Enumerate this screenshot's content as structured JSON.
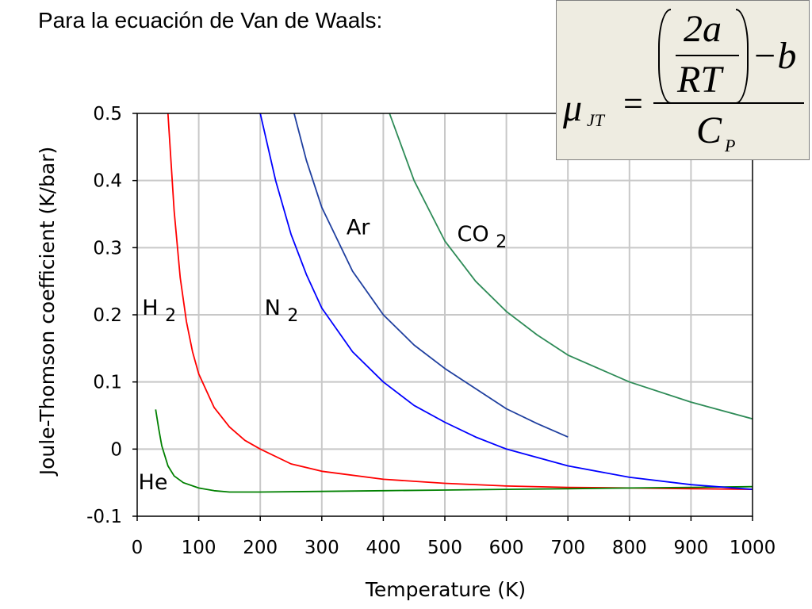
{
  "slide": {
    "title": "Para la ecuación de Van de Waals:"
  },
  "formula": {
    "mu": "μ",
    "mu_subscript": "JT",
    "equals": "=",
    "two_a": "2a",
    "rt": "RT",
    "minus_b": "−b",
    "cp": "C",
    "cp_subscript": "P"
  },
  "chart_data": {
    "type": "line",
    "xlabel": "Temperature (K)",
    "ylabel": "Joule-Thomson coefficient (K/bar)",
    "xlim": [
      0,
      1000
    ],
    "ylim": [
      -0.1,
      0.5
    ],
    "xticks": [
      "0",
      "100",
      "200",
      "300",
      "400",
      "500",
      "600",
      "700",
      "800",
      "900",
      "1000"
    ],
    "yticks": [
      "0.5",
      "0.4",
      "0.3",
      "0.2",
      "0.1",
      "0",
      "-0.1"
    ],
    "grid": true,
    "series": [
      {
        "name": "H",
        "subscript": "2",
        "color": "#ff0000",
        "x": [
          50,
          60,
          70,
          80,
          90,
          100,
          125,
          150,
          175,
          200,
          250,
          300,
          400,
          500,
          600,
          700,
          800,
          900,
          1000
        ],
        "y": [
          0.5,
          0.355,
          0.255,
          0.19,
          0.145,
          0.112,
          0.062,
          0.033,
          0.013,
          0.0,
          -0.022,
          -0.033,
          -0.045,
          -0.051,
          -0.055,
          -0.057,
          -0.058,
          -0.059,
          -0.06
        ]
      },
      {
        "name": "He",
        "subscript": "",
        "color": "#008000",
        "x": [
          30,
          35,
          40,
          50,
          60,
          75,
          100,
          125,
          150,
          200,
          300,
          400,
          500,
          600,
          700,
          800,
          900,
          1000
        ],
        "y": [
          0.059,
          0.03,
          0.005,
          -0.025,
          -0.04,
          -0.05,
          -0.058,
          -0.062,
          -0.064,
          -0.064,
          -0.063,
          -0.062,
          -0.061,
          -0.06,
          -0.059,
          -0.058,
          -0.057,
          -0.056
        ]
      },
      {
        "name": "N",
        "subscript": "2",
        "color": "#0000ff",
        "x": [
          200,
          225,
          250,
          275,
          300,
          350,
          400,
          450,
          500,
          550,
          600,
          700,
          800,
          900,
          1000
        ],
        "y": [
          0.5,
          0.4,
          0.32,
          0.26,
          0.21,
          0.145,
          0.1,
          0.065,
          0.04,
          0.018,
          0.0,
          -0.025,
          -0.042,
          -0.053,
          -0.06
        ]
      },
      {
        "name": "Ar",
        "subscript": "",
        "color": "#1f3f9f",
        "x": [
          255,
          275,
          300,
          350,
          400,
          450,
          500,
          550,
          600,
          650,
          700
        ],
        "y": [
          0.5,
          0.43,
          0.36,
          0.265,
          0.2,
          0.155,
          0.12,
          0.09,
          0.06,
          0.038,
          0.018
        ]
      },
      {
        "name": "CO",
        "subscript": "2",
        "color": "#2e8b57",
        "x": [
          410,
          450,
          500,
          550,
          600,
          650,
          700,
          800,
          900,
          1000
        ],
        "y": [
          0.5,
          0.4,
          0.31,
          0.25,
          0.205,
          0.17,
          0.14,
          0.1,
          0.07,
          0.045
        ]
      }
    ]
  }
}
